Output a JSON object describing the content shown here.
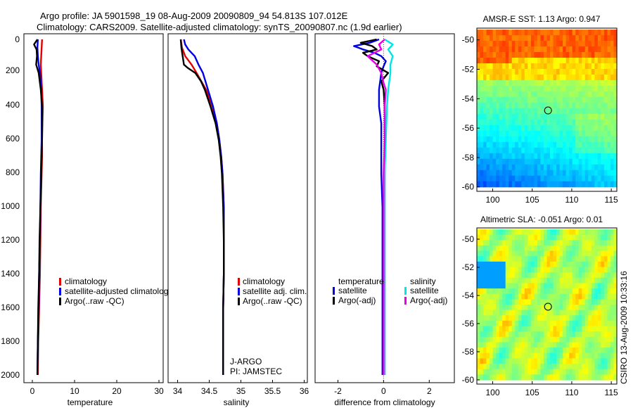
{
  "title": {
    "line1": "Argo profile: JA 5901598_19 08-Aug-2009 20090809_94 54.813S 107.012E",
    "line2": "Climatology: CARS2009. Satellite-adjusted climatology: synTS_20090807.nc (1.9d earlier)"
  },
  "credit": "CSIRO 13-Aug-2009 10:33:16",
  "colors": {
    "red": "#e00000",
    "blue": "#0000e0",
    "black": "#000000",
    "cyan": "#00e6e6",
    "magenta": "#e600e6"
  },
  "chart_data": [
    {
      "type": "line",
      "id": "temperature",
      "xlabel": "temperature",
      "xlim": [
        -2,
        31
      ],
      "xticks": [
        0,
        10,
        20,
        30
      ],
      "ylim": [
        0,
        2050
      ],
      "yticks": [
        0,
        200,
        400,
        600,
        800,
        1000,
        1200,
        1400,
        1600,
        1800,
        2000
      ],
      "series": [
        {
          "name": "climatology",
          "color": "#e00000",
          "depth": [
            0,
            50,
            100,
            150,
            200,
            300,
            400,
            500,
            600,
            700,
            800,
            1000,
            1200,
            1400,
            1600,
            1800,
            2000
          ],
          "values": [
            2.3,
            2.2,
            2.1,
            2.0,
            2.1,
            2.3,
            2.5,
            2.4,
            2.3,
            2.3,
            2.2,
            2.0,
            1.9,
            1.8,
            1.6,
            1.4,
            1.3
          ]
        },
        {
          "name": "satellite-adjusted climatology",
          "color": "#0000e0",
          "depth": [
            0,
            50,
            100,
            150,
            200,
            300,
            400,
            500,
            600,
            700,
            800,
            1000,
            1200,
            1400,
            1600,
            1800,
            2000
          ],
          "values": [
            1.3,
            1.2,
            1.3,
            1.5,
            1.8,
            2.1,
            2.2,
            2.2,
            2.2,
            2.1,
            2.0,
            1.9,
            1.8,
            1.6,
            1.5,
            1.3,
            1.2
          ]
        },
        {
          "name": "Argo(..raw -QC)",
          "color": "#000000",
          "depth": [
            0,
            30,
            60,
            100,
            150,
            200,
            300,
            400,
            500,
            600,
            700,
            800,
            1000,
            1200,
            1400,
            1600,
            1800,
            2000
          ],
          "values": [
            1.2,
            0.4,
            1.0,
            1.1,
            0.9,
            1.5,
            2.0,
            2.3,
            2.3,
            2.3,
            2.2,
            2.1,
            1.9,
            1.7,
            1.6,
            1.4,
            1.3,
            1.2
          ]
        }
      ],
      "legend": {
        "position": "lower-right",
        "entries": [
          "climatology",
          "satellite-adjusted climatolog",
          "Argo(..raw -QC)"
        ]
      }
    },
    {
      "type": "line",
      "id": "salinity",
      "xlabel": "salinity",
      "xlim": [
        33.85,
        36.05
      ],
      "xticks": [
        34,
        34.5,
        35,
        35.5,
        36
      ],
      "ylim": [
        0,
        2050
      ],
      "series": [
        {
          "name": "climatology",
          "color": "#e00000",
          "depth": [
            0,
            50,
            100,
            150,
            200,
            300,
            400,
            500,
            600,
            700,
            800,
            900,
            1000,
            1200,
            1400,
            1600,
            1800,
            2000
          ],
          "values": [
            34.05,
            34.07,
            34.12,
            34.22,
            34.3,
            34.45,
            34.55,
            34.62,
            34.66,
            34.69,
            34.71,
            34.72,
            34.73,
            34.73,
            34.73,
            34.72,
            34.72,
            34.72
          ]
        },
        {
          "name": "satellite adj. clim.",
          "color": "#0000e0",
          "depth": [
            0,
            30,
            60,
            100,
            150,
            200,
            300,
            400,
            500,
            600,
            700,
            800,
            900,
            1000,
            1200,
            1400,
            1600,
            1800,
            2000
          ],
          "values": [
            34.1,
            34.12,
            34.17,
            34.27,
            34.33,
            34.4,
            34.48,
            34.56,
            34.62,
            34.66,
            34.69,
            34.71,
            34.72,
            34.73,
            34.73,
            34.73,
            34.72,
            34.72,
            34.72
          ]
        },
        {
          "name": "Argo(..raw -QC)",
          "color": "#000000",
          "depth": [
            0,
            50,
            100,
            150,
            170,
            200,
            250,
            300,
            400,
            500,
            600,
            700,
            800,
            900,
            1000,
            1200,
            1400,
            1600,
            1800,
            2000
          ],
          "values": [
            34.05,
            34.06,
            34.08,
            34.1,
            34.16,
            34.28,
            34.37,
            34.43,
            34.52,
            34.6,
            34.65,
            34.68,
            34.7,
            34.71,
            34.72,
            34.73,
            34.73,
            34.72,
            34.72,
            34.72
          ]
        }
      ],
      "legend": {
        "position": "lower-right",
        "entries": [
          "climatology",
          "satellite adj. clim.",
          "Argo(..raw -QC)"
        ]
      },
      "annotation": {
        "line1": "J-ARGO",
        "line2": "PI: JAMSTEC"
      }
    },
    {
      "type": "line",
      "id": "difference",
      "xlabel": "difference from climatology",
      "xlim": [
        -3,
        3.1
      ],
      "xticks": [
        -2,
        0,
        2
      ],
      "ylim": [
        0,
        2050
      ],
      "series": [
        {
          "name": "temperature satellite",
          "color": "#0000e0",
          "depth": [
            0,
            20,
            40,
            60,
            80,
            100,
            130,
            160,
            200,
            300,
            400,
            500,
            600,
            800,
            1000,
            1200,
            1500,
            1800,
            2000
          ],
          "values": [
            -0.2,
            -0.6,
            -1.3,
            -0.9,
            -0.4,
            -0.1,
            0.1,
            0.0,
            -0.1,
            -0.2,
            -0.2,
            -0.1,
            -0.1,
            -0.1,
            -0.05,
            -0.05,
            -0.05,
            -0.05,
            -0.05
          ]
        },
        {
          "name": "temperature Argo(-adj)",
          "color": "#000000",
          "depth": [
            0,
            20,
            40,
            60,
            80,
            100,
            130,
            160,
            200,
            250,
            300,
            400,
            500,
            700,
            1000,
            1500,
            2000
          ],
          "values": [
            -0.3,
            -1.0,
            -0.5,
            -0.3,
            -0.9,
            -0.7,
            -0.2,
            -0.3,
            0.2,
            -0.1,
            0.0,
            0.05,
            0.05,
            0.05,
            0.05,
            0.05,
            0.05
          ]
        },
        {
          "name": "salinity satellite",
          "color": "#00e6e6",
          "depth": [
            0,
            30,
            60,
            100,
            150,
            200,
            300,
            400,
            600,
            800,
            1000,
            1500,
            2000
          ],
          "values": [
            0.05,
            0.4,
            0.2,
            0.4,
            0.3,
            0.3,
            0.2,
            0.15,
            0.1,
            0.05,
            0.05,
            0.05,
            0.05
          ]
        },
        {
          "name": "salinity Argo(-adj)",
          "color": "#e600e6",
          "depth": [
            0,
            30,
            60,
            100,
            150,
            200,
            260,
            300,
            400,
            600,
            800,
            1000,
            1500,
            2000
          ],
          "values": [
            0.05,
            -0.2,
            -0.1,
            -0.7,
            -0.3,
            -0.1,
            0.0,
            0.1,
            0.05,
            0.05,
            0.0,
            0.0,
            0.0,
            0.0
          ]
        }
      ],
      "legend": {
        "position": "lower-center",
        "temperature_header": "temperature",
        "salinity_header": "salinity",
        "entries": [
          "satellite",
          "Argo(-adj)",
          "satellite",
          "Argo(-adj)"
        ]
      }
    },
    {
      "type": "heatmap",
      "id": "sst",
      "title": "AMSR-E SST: 1.13 Argo: 0.947",
      "xlim": [
        98,
        115.7
      ],
      "ylim": [
        -60.3,
        -49.2
      ],
      "xticks": [
        100,
        105,
        110,
        115
      ],
      "yticks": [
        -50,
        -52,
        -54,
        -56,
        -58,
        -60
      ],
      "marker": {
        "lon": 107.0,
        "lat": -54.8
      },
      "palette": "jet"
    },
    {
      "type": "heatmap",
      "id": "sla",
      "title": "Altimetric SLA: -0.051 Argo: 0.01",
      "xlim": [
        98,
        115.7
      ],
      "ylim": [
        -60.3,
        -49.2
      ],
      "xticks": [
        100,
        105,
        110,
        115
      ],
      "yticks": [
        -50,
        -52,
        -54,
        -56,
        -58,
        -60
      ],
      "marker": {
        "lon": 107.0,
        "lat": -54.8
      },
      "palette": "jet"
    }
  ]
}
